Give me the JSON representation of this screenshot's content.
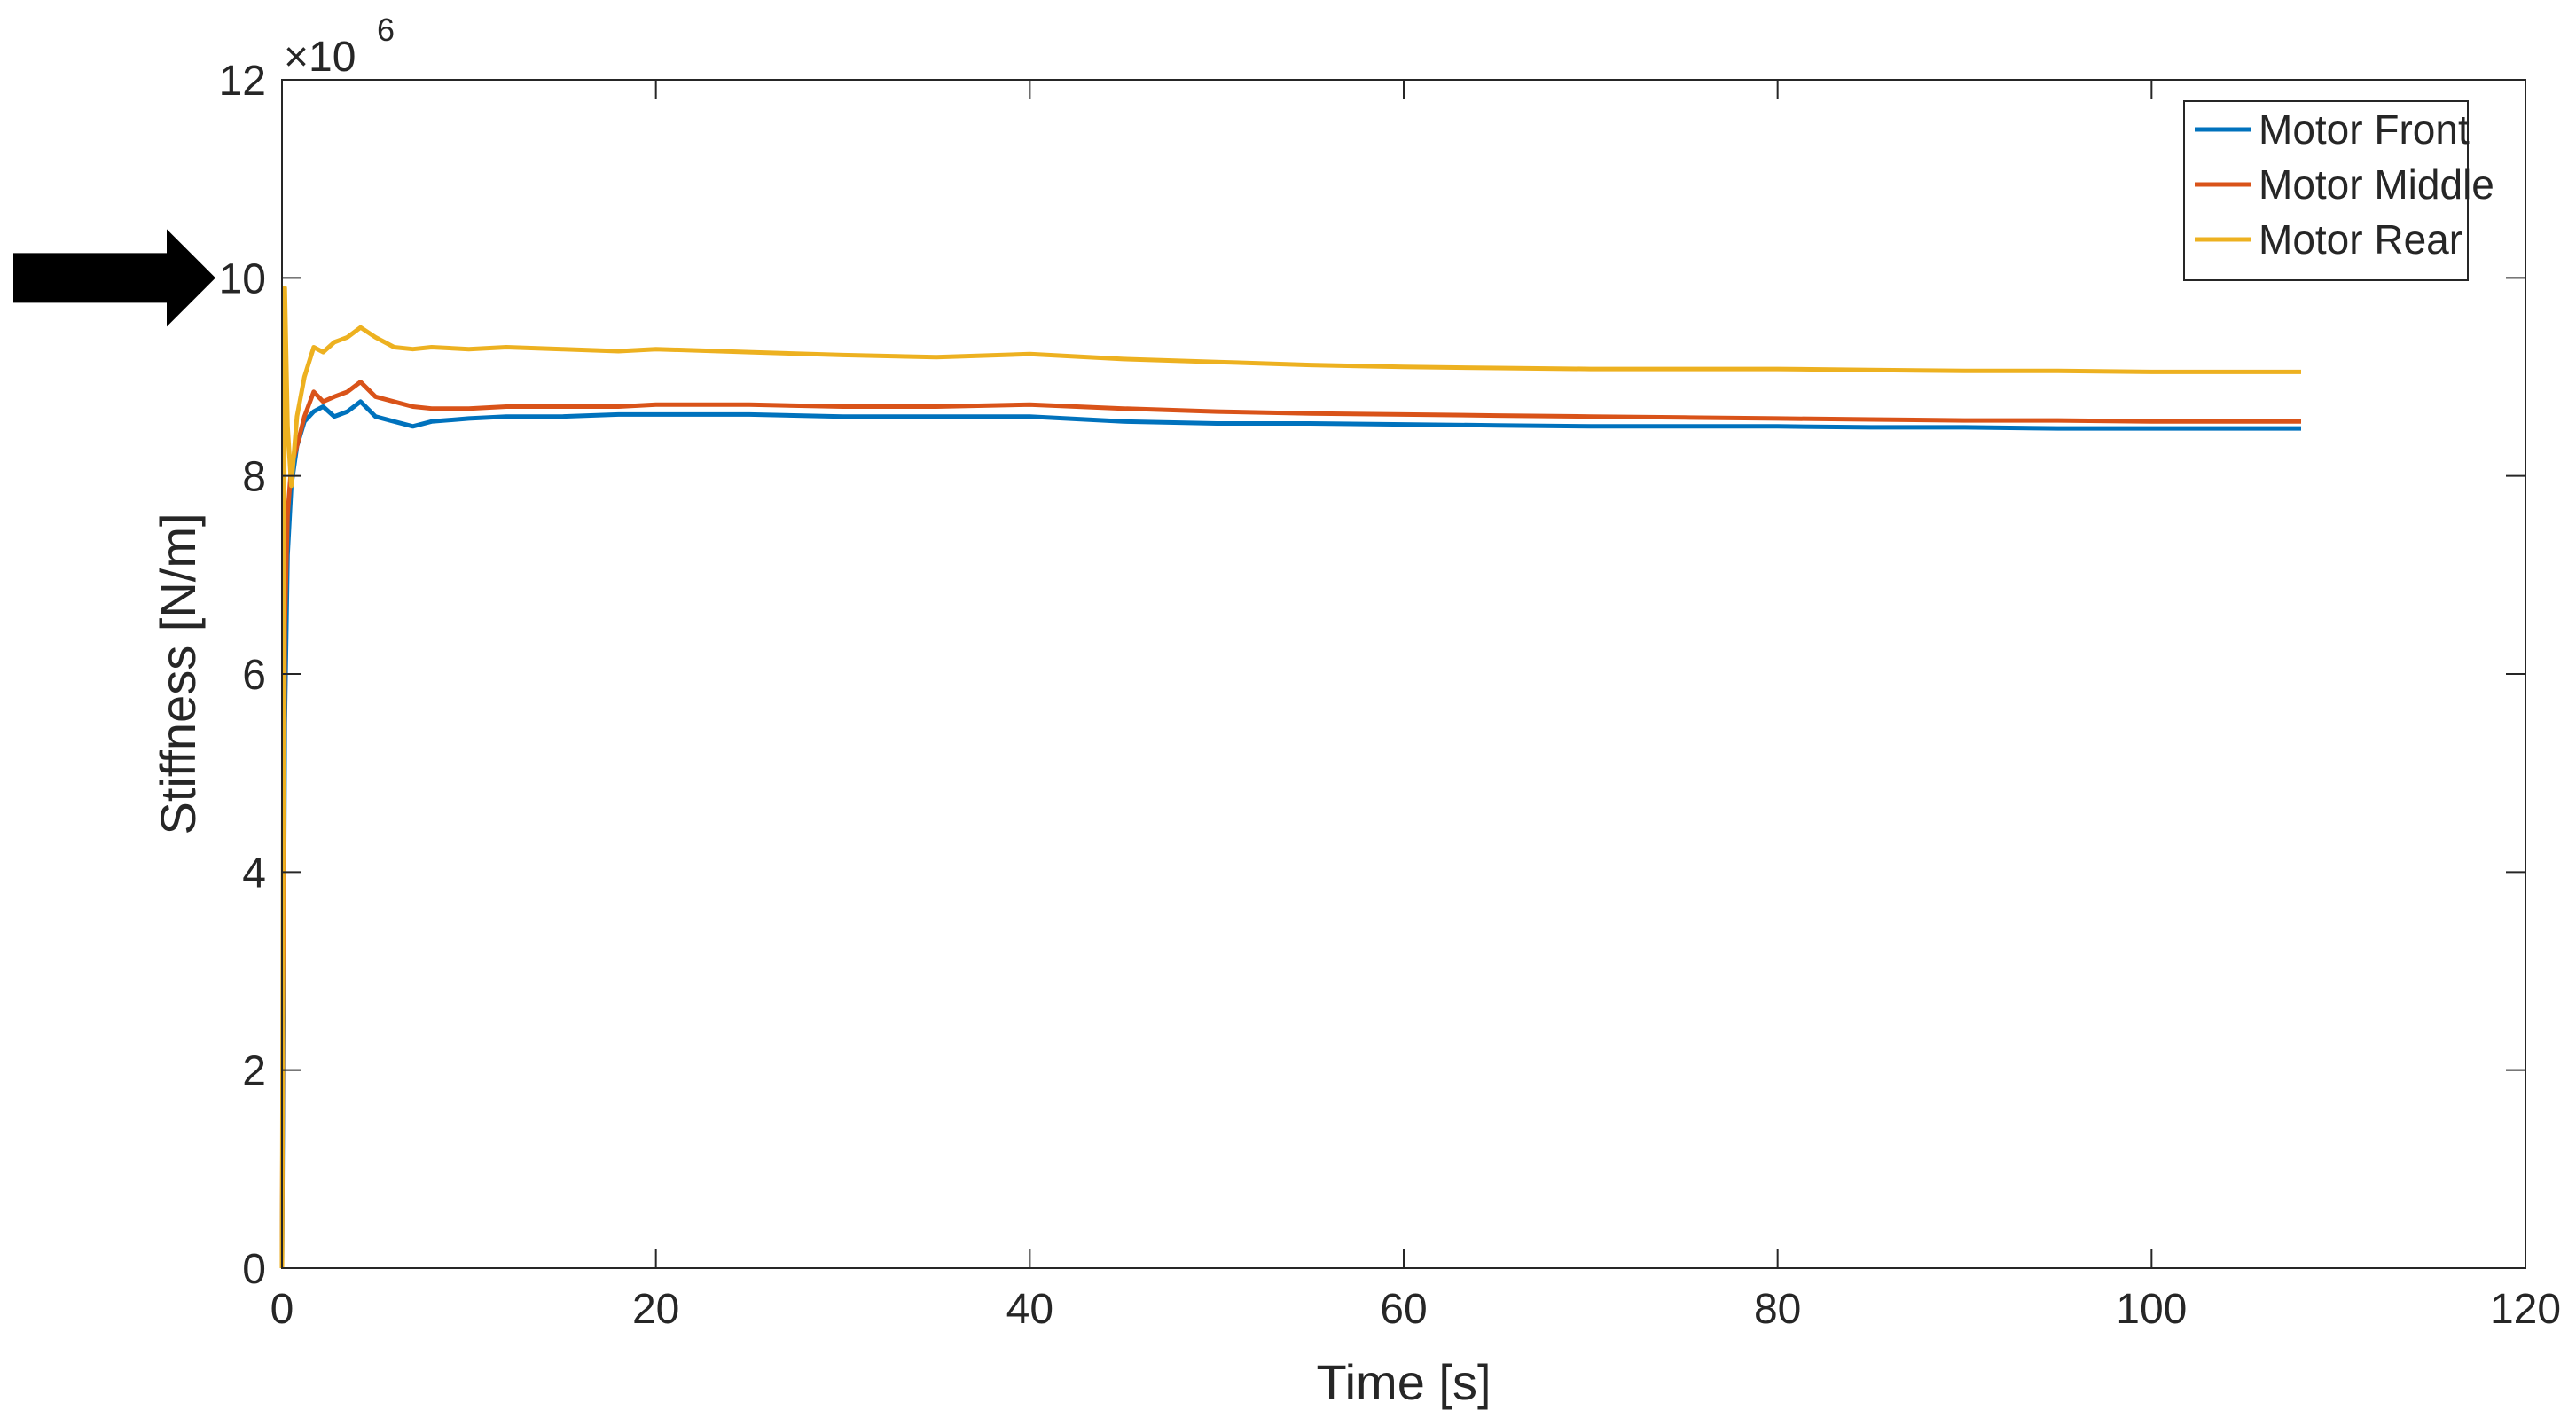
{
  "chart_data": {
    "type": "line",
    "title": "",
    "xlabel": "Time [s]",
    "ylabel": "Stiffness [N/m]",
    "y_multiplier": "×10",
    "y_multiplier_exponent": "6",
    "xlim": [
      0,
      120
    ],
    "ylim": [
      0,
      12
    ],
    "xticks": [
      0,
      20,
      40,
      60,
      80,
      100,
      120
    ],
    "yticks": [
      0,
      2,
      4,
      6,
      8,
      10,
      12
    ],
    "grid": false,
    "legend_position": "top-right",
    "annotation": "black arrow pointing at y = 10 tick",
    "colors": {
      "front": "#0072BD",
      "middle": "#D95319",
      "rear": "#EDB120",
      "axis": "#262626",
      "arrow": "#000000"
    },
    "series": [
      {
        "name": "Motor Front",
        "color": "#0072BD",
        "x": [
          0,
          0.05,
          0.15,
          0.3,
          0.5,
          0.8,
          1.2,
          1.7,
          2.2,
          2.8,
          3.5,
          4.2,
          5,
          6,
          7,
          8,
          10,
          12,
          15,
          18,
          20,
          25,
          30,
          35,
          40,
          45,
          50,
          55,
          60,
          65,
          70,
          75,
          80,
          85,
          90,
          95,
          100,
          105,
          108
        ],
        "y": [
          0,
          1.8,
          5.5,
          7.2,
          7.9,
          8.3,
          8.55,
          8.65,
          8.7,
          8.6,
          8.65,
          8.75,
          8.6,
          8.55,
          8.5,
          8.55,
          8.58,
          8.6,
          8.6,
          8.62,
          8.62,
          8.62,
          8.6,
          8.6,
          8.6,
          8.55,
          8.53,
          8.53,
          8.52,
          8.51,
          8.5,
          8.5,
          8.5,
          8.49,
          8.49,
          8.48,
          8.48,
          8.48,
          8.48
        ]
      },
      {
        "name": "Motor Middle",
        "color": "#D95319",
        "x": [
          0,
          0.05,
          0.15,
          0.3,
          0.5,
          0.8,
          1.2,
          1.7,
          2.2,
          2.8,
          3.5,
          4.2,
          5,
          6,
          7,
          8,
          10,
          12,
          15,
          18,
          20,
          25,
          30,
          35,
          40,
          45,
          50,
          55,
          60,
          65,
          70,
          75,
          80,
          85,
          90,
          95,
          100,
          105,
          108
        ],
        "y": [
          0,
          2.5,
          6.5,
          7.6,
          8.1,
          8.3,
          8.6,
          8.85,
          8.75,
          8.8,
          8.85,
          8.95,
          8.8,
          8.75,
          8.7,
          8.68,
          8.68,
          8.7,
          8.7,
          8.7,
          8.72,
          8.72,
          8.7,
          8.7,
          8.72,
          8.68,
          8.65,
          8.63,
          8.62,
          8.61,
          8.6,
          8.59,
          8.58,
          8.57,
          8.56,
          8.56,
          8.55,
          8.55,
          8.55
        ]
      },
      {
        "name": "Motor Rear",
        "color": "#EDB120",
        "x": [
          0,
          0.05,
          0.15,
          0.3,
          0.5,
          0.8,
          1.2,
          1.7,
          2.2,
          2.8,
          3.5,
          4.2,
          5,
          6,
          7,
          8,
          10,
          12,
          15,
          18,
          20,
          25,
          30,
          35,
          40,
          45,
          50,
          55,
          60,
          65,
          70,
          75,
          80,
          85,
          90,
          95,
          100,
          105,
          108
        ],
        "y": [
          0,
          3.5,
          9.9,
          8.5,
          7.9,
          8.6,
          9.0,
          9.3,
          9.25,
          9.35,
          9.4,
          9.5,
          9.4,
          9.3,
          9.28,
          9.3,
          9.28,
          9.3,
          9.28,
          9.26,
          9.28,
          9.25,
          9.22,
          9.2,
          9.23,
          9.18,
          9.15,
          9.12,
          9.1,
          9.09,
          9.08,
          9.08,
          9.08,
          9.07,
          9.06,
          9.06,
          9.05,
          9.05,
          9.05
        ]
      }
    ]
  }
}
